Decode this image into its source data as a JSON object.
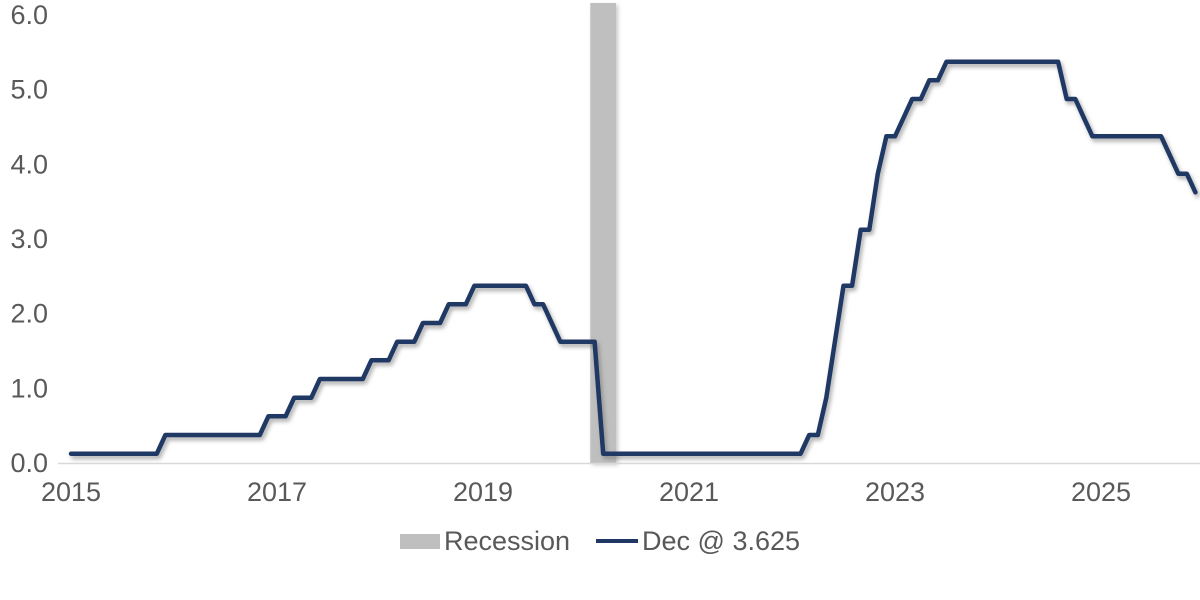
{
  "chart_data": {
    "type": "line",
    "title": "",
    "frequency": "monthly",
    "x_start": "2015-01",
    "x_end": "2025-12",
    "ylim": [
      0,
      6.2
    ],
    "grid": false,
    "y_ticks": [
      {
        "value": 0,
        "label": "0.0"
      },
      {
        "value": 1,
        "label": "1.0"
      },
      {
        "value": 2,
        "label": "2.0"
      },
      {
        "value": 3,
        "label": "3.0"
      },
      {
        "value": 4,
        "label": "4.0"
      },
      {
        "value": 5,
        "label": "5.0"
      },
      {
        "value": 6,
        "label": "6.0"
      }
    ],
    "x_tick_labels": [
      {
        "year": 2015,
        "label": "2015"
      },
      {
        "year": 2017,
        "label": "2017"
      },
      {
        "year": 2019,
        "label": "2019"
      },
      {
        "year": 2021,
        "label": "2021"
      },
      {
        "year": 2023,
        "label": "2023"
      },
      {
        "year": 2025,
        "label": "2025"
      }
    ],
    "recession_bands": [
      {
        "start": "2020-02",
        "end": "2020-04"
      }
    ],
    "series": [
      {
        "name": "Dec @ 3.625",
        "color": "#1F3864",
        "values": [
          0.125,
          0.125,
          0.125,
          0.125,
          0.125,
          0.125,
          0.125,
          0.125,
          0.125,
          0.125,
          0.125,
          0.375,
          0.375,
          0.375,
          0.375,
          0.375,
          0.375,
          0.375,
          0.375,
          0.375,
          0.375,
          0.375,
          0.375,
          0.625,
          0.625,
          0.625,
          0.875,
          0.875,
          0.875,
          1.125,
          1.125,
          1.125,
          1.125,
          1.125,
          1.125,
          1.375,
          1.375,
          1.375,
          1.625,
          1.625,
          1.625,
          1.875,
          1.875,
          1.875,
          2.125,
          2.125,
          2.125,
          2.375,
          2.375,
          2.375,
          2.375,
          2.375,
          2.375,
          2.375,
          2.125,
          2.125,
          1.875,
          1.625,
          1.625,
          1.625,
          1.625,
          1.625,
          0.125,
          0.125,
          0.125,
          0.125,
          0.125,
          0.125,
          0.125,
          0.125,
          0.125,
          0.125,
          0.125,
          0.125,
          0.125,
          0.125,
          0.125,
          0.125,
          0.125,
          0.125,
          0.125,
          0.125,
          0.125,
          0.125,
          0.125,
          0.125,
          0.375,
          0.375,
          0.875,
          1.625,
          2.375,
          2.375,
          3.125,
          3.125,
          3.875,
          4.375,
          4.375,
          4.625,
          4.875,
          4.875,
          5.125,
          5.125,
          5.375,
          5.375,
          5.375,
          5.375,
          5.375,
          5.375,
          5.375,
          5.375,
          5.375,
          5.375,
          5.375,
          5.375,
          5.375,
          5.375,
          4.875,
          4.875,
          4.625,
          4.375,
          4.375,
          4.375,
          4.375,
          4.375,
          4.375,
          4.375,
          4.375,
          4.375,
          4.125,
          3.875,
          3.875,
          3.625
        ]
      }
    ],
    "legend": [
      {
        "label": "Recession",
        "swatch": "box",
        "color": "#BFBFBF"
      },
      {
        "label": "Dec @ 3.625",
        "swatch": "line",
        "color": "#1F3864"
      }
    ],
    "colors": {
      "line": "#1F3864",
      "recession_band": "#BFBFBF",
      "axis_line": "#D9D9D9",
      "labels": "#595959",
      "background": "#FFFFFF"
    }
  }
}
